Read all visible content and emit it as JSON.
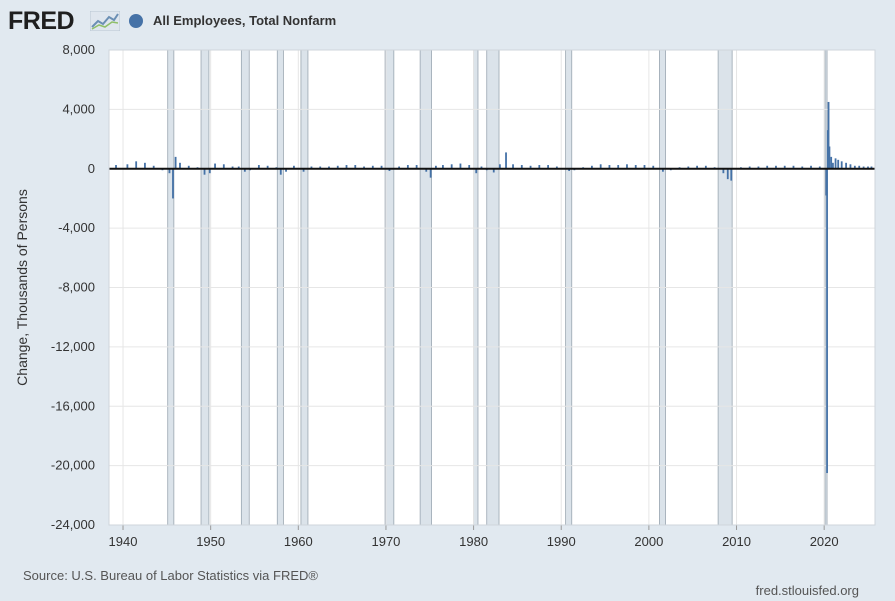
{
  "header": {
    "logo_text": "FRED",
    "series_name": "All Employees, Total Nonfarm",
    "series_color": "#4572a7"
  },
  "footer": {
    "source": "Source: U.S. Bureau of Labor Statistics via FRED®",
    "site": "fred.stlouisfed.org"
  },
  "chart_data": {
    "type": "bar",
    "title": "",
    "xlabel": "",
    "ylabel": "Change, Thousands of Persons",
    "xlim": [
      1938.4,
      2025.8
    ],
    "ylim": [
      -24000,
      8000
    ],
    "y_ticks": [
      8000,
      4000,
      0,
      -4000,
      -8000,
      -12000,
      -16000,
      -20000,
      -24000
    ],
    "y_tick_labels": [
      "8,000",
      "4,000",
      "0",
      "-4,000",
      "-8,000",
      "-12,000",
      "-16,000",
      "-20,000",
      "-24,000"
    ],
    "x_ticks": [
      1940,
      1950,
      1960,
      1970,
      1980,
      1990,
      2000,
      2010,
      2020
    ],
    "x_tick_labels": [
      "1940",
      "1950",
      "1960",
      "1970",
      "1980",
      "1990",
      "2000",
      "2010",
      "2020"
    ],
    "grid": true,
    "legend": "top-left",
    "recession_color": "#dbe3ea",
    "recessions": [
      [
        1945.1,
        1945.8
      ],
      [
        1948.9,
        1949.8
      ],
      [
        1953.5,
        1954.4
      ],
      [
        1957.6,
        1958.3
      ],
      [
        1960.3,
        1961.1
      ],
      [
        1969.9,
        1970.9
      ],
      [
        1973.9,
        1975.2
      ],
      [
        1980.0,
        1980.5
      ],
      [
        1981.5,
        1982.9
      ],
      [
        1990.5,
        1991.2
      ],
      [
        2001.2,
        2001.9
      ],
      [
        2007.9,
        2009.5
      ],
      [
        2020.1,
        2020.3
      ]
    ],
    "series": [
      {
        "name": "All Employees, Total Nonfarm",
        "x": [
          1939.2,
          1940.5,
          1941.5,
          1942.5,
          1943.5,
          1944.5,
          1945.3,
          1945.7,
          1946.0,
          1946.5,
          1947.5,
          1948.5,
          1949.3,
          1949.9,
          1950.5,
          1951.5,
          1952.5,
          1953.2,
          1953.9,
          1954.5,
          1955.5,
          1956.5,
          1957.5,
          1958.0,
          1958.6,
          1959.5,
          1960.6,
          1961.5,
          1962.5,
          1963.5,
          1964.5,
          1965.5,
          1966.5,
          1967.5,
          1968.5,
          1969.5,
          1970.4,
          1971.5,
          1972.5,
          1973.5,
          1974.6,
          1975.1,
          1975.7,
          1976.5,
          1977.5,
          1978.5,
          1979.5,
          1980.3,
          1980.9,
          1981.5,
          1982.3,
          1983.0,
          1983.7,
          1984.5,
          1985.5,
          1986.5,
          1987.5,
          1988.5,
          1989.5,
          1990.9,
          1991.5,
          1992.5,
          1993.5,
          1994.5,
          1995.5,
          1996.5,
          1997.5,
          1998.5,
          1999.5,
          2000.5,
          2001.6,
          2002.5,
          2003.5,
          2004.5,
          2005.5,
          2006.5,
          2007.5,
          2008.5,
          2009.0,
          2009.4,
          2010.5,
          2011.5,
          2012.5,
          2013.5,
          2014.5,
          2015.5,
          2016.5,
          2017.5,
          2018.5,
          2019.5,
          2020.25,
          2020.33,
          2020.42,
          2020.5,
          2020.6,
          2020.8,
          2021.0,
          2021.3,
          2021.6,
          2022.0,
          2022.5,
          2023.0,
          2023.5,
          2024.0,
          2024.5,
          2025.0,
          2025.4
        ],
        "values": [
          250,
          300,
          500,
          400,
          200,
          -100,
          -300,
          -2000,
          800,
          400,
          200,
          100,
          -400,
          -300,
          350,
          300,
          150,
          150,
          -200,
          -100,
          250,
          200,
          100,
          -400,
          -200,
          200,
          -200,
          150,
          150,
          150,
          200,
          250,
          250,
          150,
          200,
          200,
          -150,
          150,
          250,
          250,
          -200,
          -600,
          200,
          250,
          300,
          350,
          250,
          -300,
          150,
          -100,
          -250,
          300,
          1100,
          300,
          250,
          200,
          250,
          250,
          150,
          -150,
          -100,
          100,
          200,
          300,
          250,
          250,
          300,
          250,
          250,
          200,
          -200,
          -100,
          100,
          150,
          200,
          200,
          100,
          -300,
          -700,
          -800,
          100,
          150,
          150,
          200,
          200,
          200,
          200,
          150,
          200,
          150,
          -1800,
          -20500,
          2600,
          4500,
          1500,
          800,
          400,
          700,
          600,
          500,
          400,
          300,
          200,
          200,
          150,
          150,
          150
        ]
      }
    ]
  }
}
